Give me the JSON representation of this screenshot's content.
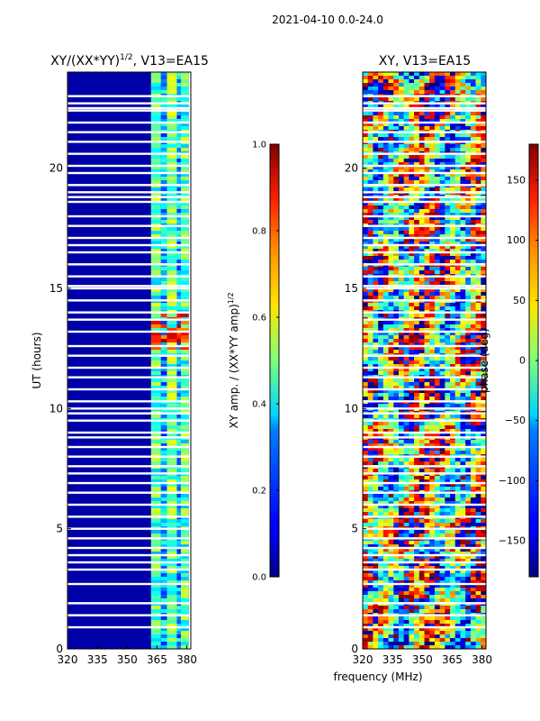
{
  "figure_title": "2021-04-10 0.0-24.0",
  "shared_xlabel": "frequency (MHz)",
  "chart_data": [
    {
      "type": "heatmap",
      "title_main": "XY/(XX*YY)",
      "title_sup": "1/2",
      "title_rest": ", V13=EA15",
      "ylabel": "UT (hours)",
      "xlim": [
        320,
        382
      ],
      "ylim": [
        0,
        24
      ],
      "xticks": [
        320,
        335,
        350,
        365,
        380
      ],
      "yticks": [
        0,
        5,
        10,
        15,
        20
      ],
      "colorbar": {
        "label_main": "XY amp. / (XX*YY amp)",
        "label_sup": "1/2",
        "range": [
          0.0,
          1.0
        ],
        "ticks": [
          "0.0",
          "0.2",
          "0.4",
          "0.6",
          "0.8",
          "1.0"
        ],
        "tick_values": [
          0.0,
          0.2,
          0.4,
          0.6,
          0.8,
          1.0
        ],
        "colormap": "jet"
      },
      "bands": [
        {
          "x0": 320,
          "x1": 362,
          "value": 0.04
        },
        {
          "x0": 362,
          "x1": 367,
          "value": 0.45
        },
        {
          "x0": 367,
          "x1": 370,
          "value": 0.3
        },
        {
          "x0": 370,
          "x1": 375,
          "value": 0.5
        },
        {
          "x0": 375,
          "x1": 377,
          "value": 0.3
        },
        {
          "x0": 377,
          "x1": 381,
          "value": 0.45
        }
      ],
      "hot_region": {
        "t0": 12.5,
        "t1": 14.0,
        "x0": 362,
        "x1": 381,
        "value": 0.85
      }
    },
    {
      "type": "heatmap",
      "title_main": "XY, V13=EA15",
      "xlim": [
        320,
        382
      ],
      "ylim": [
        0,
        24
      ],
      "xticks": [
        320,
        335,
        350,
        365,
        380
      ],
      "yticks": [
        0,
        5,
        10,
        15,
        20
      ],
      "colorbar": {
        "label_main": "phase (deg)",
        "range": [
          -180,
          180
        ],
        "ticks": [
          "−150",
          "−100",
          "−50",
          "0",
          "50",
          "100",
          "150"
        ],
        "tick_values": [
          -150,
          -100,
          -50,
          0,
          50,
          100,
          150
        ],
        "colormap": "jet"
      }
    }
  ],
  "gap_hours": [
    0.9,
    1.4,
    1.9,
    2.7,
    3.3,
    3.6,
    3.9,
    4.2,
    4.6,
    5.0,
    5.5,
    6.0,
    6.5,
    6.9,
    7.3,
    7.6,
    8.0,
    8.4,
    8.8,
    9.0,
    9.5,
    9.8,
    10.0,
    10.3,
    10.8,
    11.3,
    11.7,
    12.2,
    12.6,
    13.2,
    13.7,
    14.0,
    14.5,
    15.0,
    15.1,
    15.5,
    16.0,
    16.5,
    16.8,
    17.1,
    17.6,
    18.0,
    18.6,
    18.8,
    19.0,
    19.3,
    19.8,
    20.1,
    20.6,
    21.1,
    21.5,
    21.9,
    22.4,
    22.5,
    22.7,
    23.0
  ]
}
